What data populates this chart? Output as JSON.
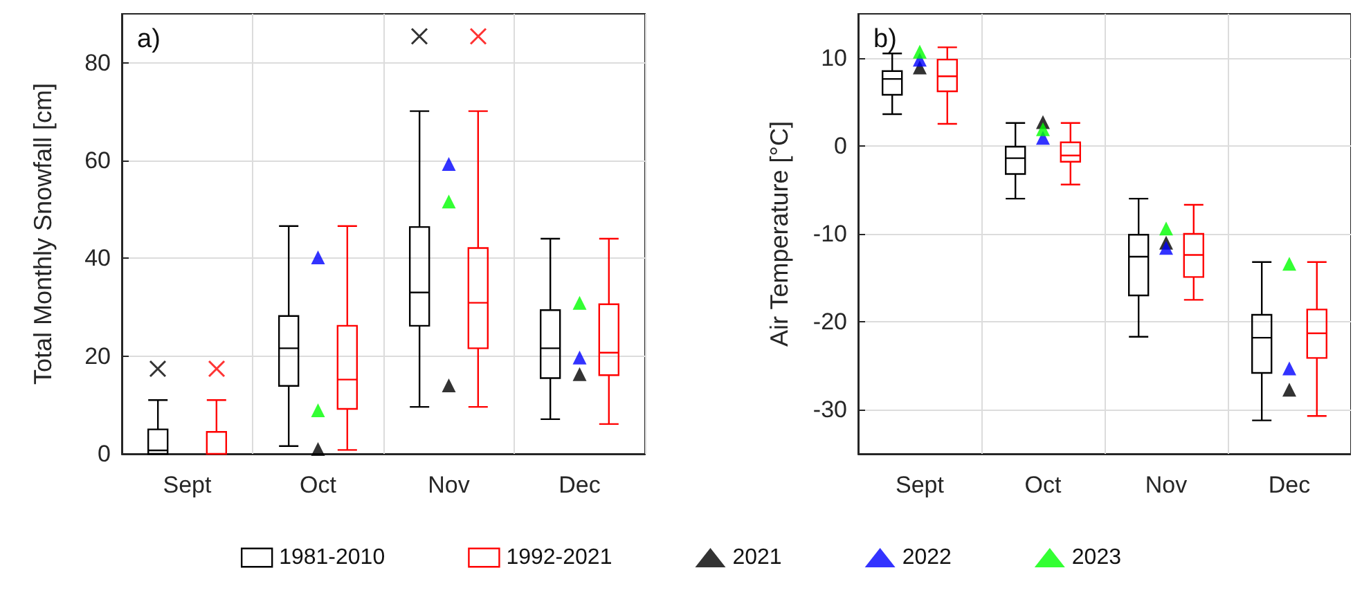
{
  "chart_data": [
    {
      "type": "box",
      "title": "a)",
      "ylabel": "Total Monthly Snowfall [cm]",
      "categories": [
        "Sept",
        "Oct",
        "Nov",
        "Dec"
      ],
      "ylim": [
        0,
        90
      ],
      "yticks": [
        0,
        20,
        40,
        60,
        80
      ],
      "grid": true,
      "legend": "bottom",
      "series": [
        {
          "name": "1981-2010",
          "color": "#000000",
          "boxes": [
            {
              "low": 0,
              "q1": 0,
              "median": 0.7,
              "q3": 5,
              "high": 11,
              "outliers": [
                17.4
              ]
            },
            {
              "low": 1.6,
              "q1": 13.9,
              "median": 21.6,
              "q3": 28.2,
              "high": 46.6
            },
            {
              "low": 9.6,
              "q1": 26.2,
              "median": 33,
              "q3": 46.4,
              "high": 70.1,
              "outliers": [
                85.4
              ]
            },
            {
              "low": 7.1,
              "q1": 15.5,
              "median": 21.6,
              "q3": 29.4,
              "high": 44
            }
          ]
        },
        {
          "name": "1992-2021",
          "color": "#ff0000",
          "boxes": [
            {
              "low": 0,
              "q1": 0,
              "median": 0,
              "q3": 4.5,
              "high": 11,
              "outliers": [
                17.4
              ]
            },
            {
              "low": 0.8,
              "q1": 9.2,
              "median": 15.2,
              "q3": 26.2,
              "high": 46.6
            },
            {
              "low": 9.6,
              "q1": 21.6,
              "median": 30.9,
              "q3": 42.1,
              "high": 70.1,
              "outliers": [
                85.4
              ]
            },
            {
              "low": 6.1,
              "q1": 16.1,
              "median": 20.7,
              "q3": 30.6,
              "high": 44
            }
          ]
        },
        {
          "name": "2021",
          "type": "scatter",
          "marker": "triangle",
          "color": "#000000",
          "values": [
            null,
            1,
            14,
            16.3
          ]
        },
        {
          "name": "2022",
          "type": "scatter",
          "marker": "triangle",
          "color": "#0000ff",
          "values": [
            null,
            40.2,
            59.3,
            19.7
          ]
        },
        {
          "name": "2023",
          "type": "scatter",
          "marker": "triangle",
          "color": "#00ff00",
          "values": [
            null,
            8.9,
            51.6,
            30.9
          ]
        }
      ]
    },
    {
      "type": "box",
      "title": "b)",
      "ylabel": "Air Temperature [°C]",
      "categories": [
        "Sept",
        "Oct",
        "Nov",
        "Dec"
      ],
      "ylim": [
        -35,
        15
      ],
      "yticks": [
        -30,
        -20,
        -10,
        0,
        10
      ],
      "grid": true,
      "legend": "bottom",
      "series": [
        {
          "name": "1981-2010",
          "color": "#000000",
          "boxes": [
            {
              "low": 3.6,
              "q1": 5.8,
              "median": 7.6,
              "q3": 8.5,
              "high": 10.5
            },
            {
              "low": -6,
              "q1": -3.2,
              "median": -1.4,
              "q3": -0.1,
              "high": 2.6
            },
            {
              "low": -21.7,
              "q1": -17,
              "median": -12.6,
              "q3": -10.1,
              "high": -6
            },
            {
              "low": -31.2,
              "q1": -25.8,
              "median": -21.8,
              "q3": -19.2,
              "high": -13.2
            }
          ]
        },
        {
          "name": "1992-2021",
          "color": "#ff0000",
          "boxes": [
            {
              "low": 2.5,
              "q1": 6.2,
              "median": 7.9,
              "q3": 9.8,
              "high": 11.2
            },
            {
              "low": -4.4,
              "q1": -1.8,
              "median": -1.1,
              "q3": 0.4,
              "high": 2.6
            },
            {
              "low": -17.5,
              "q1": -14.9,
              "median": -12.4,
              "q3": -10,
              "high": -6.7
            },
            {
              "low": -30.7,
              "q1": -24.1,
              "median": -21.3,
              "q3": -18.6,
              "high": -13.2
            }
          ]
        },
        {
          "name": "2021",
          "type": "scatter",
          "marker": "triangle",
          "color": "#000000",
          "values": [
            8.9,
            2.7,
            -11,
            -27.7
          ]
        },
        {
          "name": "2022",
          "type": "scatter",
          "marker": "triangle",
          "color": "#0000ff",
          "values": [
            9.8,
            0.9,
            -11.6,
            -25.3
          ]
        },
        {
          "name": "2023",
          "type": "scatter",
          "marker": "triangle",
          "color": "#00ff00",
          "values": [
            10.7,
            1.9,
            -9.4,
            -13.4
          ]
        }
      ]
    }
  ]
}
